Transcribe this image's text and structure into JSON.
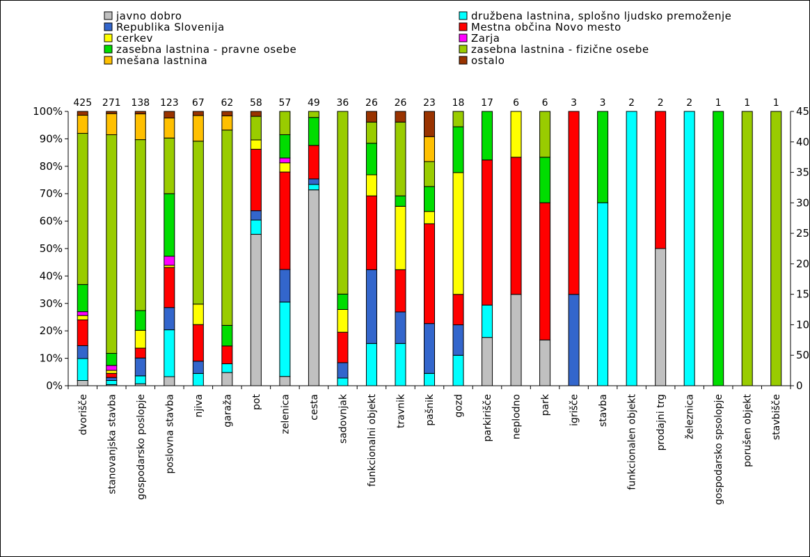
{
  "chart_data": {
    "type": "bar",
    "stacked": "percent",
    "title": "",
    "xlabel": "",
    "ylabel": "",
    "ylim": [
      0,
      100
    ],
    "ylim_right": [
      0,
      450
    ],
    "yticks": [
      "0%",
      "10%",
      "20%",
      "30%",
      "40%",
      "50%",
      "60%",
      "70%",
      "80%",
      "90%",
      "100%"
    ],
    "yticks_right": [
      "0",
      "50",
      "100",
      "150",
      "200",
      "250",
      "300",
      "350",
      "400",
      "450"
    ],
    "legend_position": "top",
    "categories": [
      "dvorišče",
      "stanovanjska stavba",
      "gospodarsko poslopje",
      "poslovna stavba",
      "njiva",
      "garaža",
      "pot",
      "zelenica",
      "cesta",
      "sadovnjak",
      "funkcionalni objekt",
      "travnik",
      "pašnik",
      "gozd",
      "parkirišče",
      "neplodno",
      "park",
      "igrišče",
      "stavba",
      "funkcionalen objekt",
      "prodajni trg",
      "železnica",
      "gospodarsko spsolopje",
      "porušen objekt",
      "stavbišče"
    ],
    "counts": [
      "425",
      "271",
      "138",
      "123",
      "67",
      "62",
      "58",
      "57",
      "49",
      "36",
      "26",
      "26",
      "23",
      "18",
      "17",
      "6",
      "6",
      "3",
      "3",
      "2",
      "2",
      "2",
      "1",
      "1",
      "1"
    ],
    "series": [
      {
        "name": "javno dobro",
        "color": "#c0c0c0",
        "values": [
          1.9,
          0.4,
          0.7,
          3.3,
          0,
          4.8,
          55.2,
          3.5,
          71.4,
          0,
          0,
          0,
          0,
          0,
          17.6,
          33.3,
          16.7,
          0,
          0,
          0,
          50,
          0,
          0,
          0,
          0
        ]
      },
      {
        "name": "družbena lastnina, splošno ljudsko premoženje",
        "color": "#00ffff",
        "values": [
          8,
          1.5,
          2.9,
          17.1,
          4.5,
          3.2,
          5.2,
          28.1,
          2,
          2.8,
          15.4,
          15.4,
          4.3,
          11.1,
          11.8,
          0,
          0,
          0,
          66.7,
          100,
          0,
          100,
          0,
          0,
          0
        ]
      },
      {
        "name": "Republika Slovenija",
        "color": "#3366cc",
        "values": [
          4.7,
          1.1,
          6.5,
          8.1,
          4.5,
          0,
          3.4,
          12.3,
          2,
          5.6,
          26.9,
          11.5,
          17.4,
          11.1,
          0,
          0,
          0,
          33.3,
          0,
          0,
          0,
          0,
          0,
          0,
          0
        ]
      },
      {
        "name": "Mestna občina Novo mesto",
        "color": "#ff0000",
        "values": [
          9.4,
          1.5,
          3.6,
          14.6,
          13.4,
          6.5,
          22.4,
          36.8,
          12.2,
          11.1,
          26.9,
          15.4,
          34.8,
          11.1,
          52.9,
          50,
          50,
          66.7,
          0,
          0,
          50,
          0,
          0,
          0,
          0
        ]
      },
      {
        "name": "cerkev",
        "color": "#ffff00",
        "values": [
          1.6,
          1.1,
          6.5,
          0.8,
          7.5,
          0,
          3.4,
          3.5,
          0,
          8.3,
          7.7,
          23.1,
          4.3,
          44.4,
          0,
          16.7,
          0,
          0,
          0,
          0,
          0,
          0,
          0,
          0,
          0
        ]
      },
      {
        "name": "Zarja",
        "color": "#ff00ff",
        "values": [
          1.4,
          1.8,
          0,
          3.3,
          0,
          0,
          0,
          1.8,
          0,
          0,
          0,
          0,
          0,
          0,
          0,
          0,
          0,
          0,
          0,
          0,
          0,
          0,
          0,
          0,
          0
        ]
      },
      {
        "name": "zasebna lastnina - pravne osebe",
        "color": "#00dd00",
        "values": [
          9.9,
          4.4,
          7.2,
          22.8,
          0,
          7.5,
          0,
          8.8,
          10.2,
          5.6,
          11.5,
          3.8,
          8.7,
          16.7,
          17.7,
          0,
          16.6,
          0,
          33.3,
          0,
          0,
          0,
          100,
          0,
          0
        ]
      },
      {
        "name": "zasebna lastnina - fizične osebe",
        "color": "#99cc00",
        "values": [
          55.1,
          79.7,
          62.3,
          20.3,
          59.7,
          71.2,
          8.6,
          8.8,
          2.2,
          66.6,
          7.7,
          26.9,
          8.7,
          5.6,
          0,
          0,
          16.7,
          0,
          0,
          0,
          0,
          0,
          0,
          100,
          100
        ]
      },
      {
        "name": "mešana lastnina",
        "color": "#ffc000",
        "values": [
          6.6,
          7.7,
          9.4,
          7.3,
          9.4,
          5.2,
          0,
          0,
          0,
          0,
          0,
          0,
          8.7,
          0,
          0,
          0,
          0,
          0,
          0,
          0,
          0,
          0,
          0,
          0,
          0
        ]
      },
      {
        "name": "ostalo",
        "color": "#993300",
        "values": [
          1.4,
          0.8,
          0.9,
          2.4,
          1.5,
          1.6,
          1.8,
          0,
          0,
          0,
          3.9,
          3.9,
          8.8,
          0,
          0,
          0,
          0,
          0,
          0,
          0,
          0,
          0,
          0,
          0,
          0
        ]
      }
    ]
  }
}
